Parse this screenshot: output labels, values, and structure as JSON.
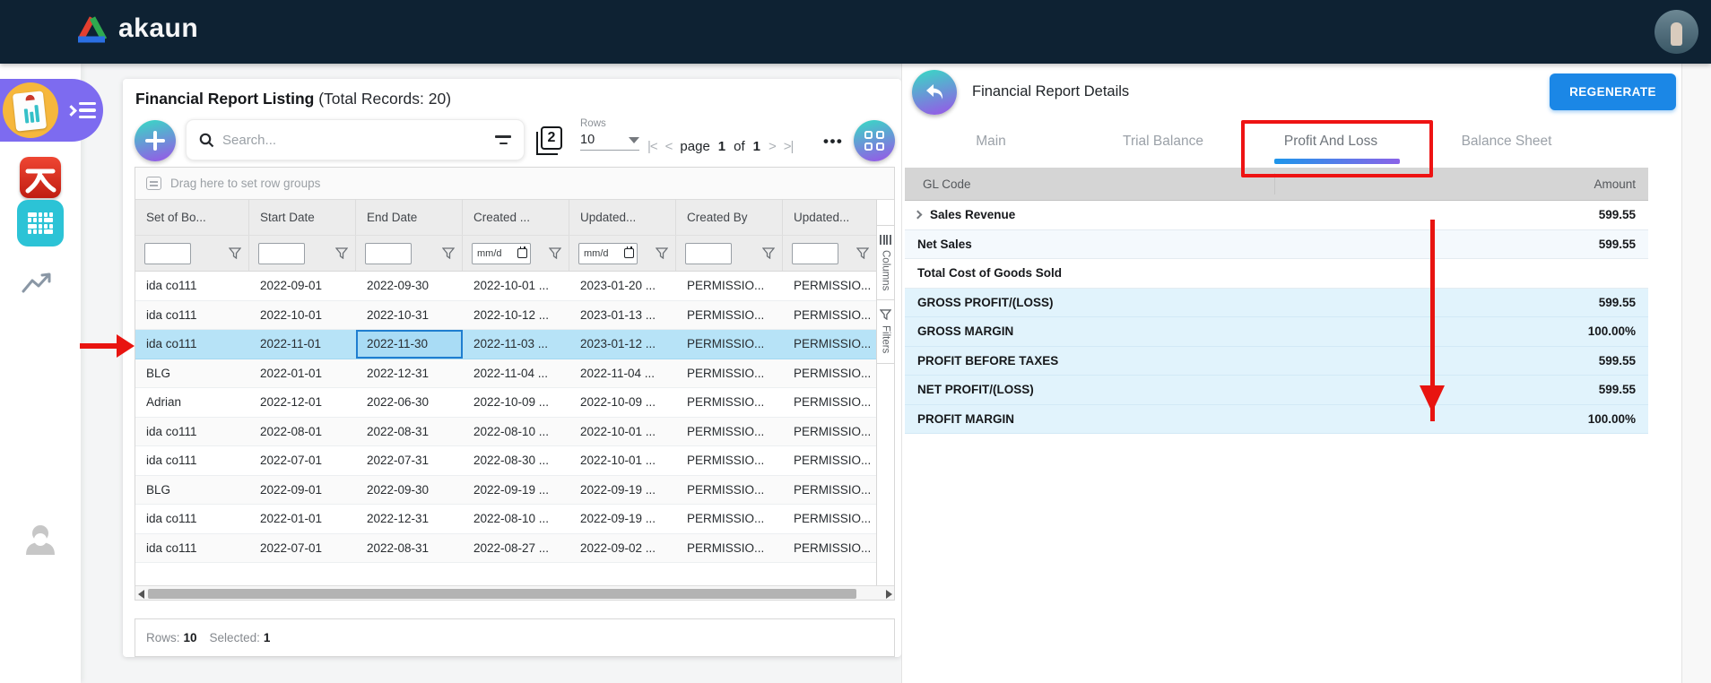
{
  "navbar": {
    "brand": "akaun"
  },
  "listing": {
    "title": "Financial Report Listing",
    "total_records_label": "(Total Records: 20)",
    "search_placeholder": "Search...",
    "rows_label": "Rows",
    "rows_value": "10",
    "pagination": {
      "page_label": "page",
      "current_page": "1",
      "of_label": "of",
      "total_pages": "1"
    },
    "drag_hint": "Drag here to set row groups",
    "columns": [
      "Set of Bo...",
      "Start Date",
      "End Date",
      "Created ...",
      "Updated...",
      "Created By",
      "Updated..."
    ],
    "filter_types": [
      "text",
      "date",
      "date",
      "date",
      "date",
      "text",
      "text"
    ],
    "date_filter_placeholder": "mm/d",
    "rows": [
      [
        "ida co111",
        "2022-09-01",
        "2022-09-30",
        "2022-10-01 ...",
        "2023-01-20 ...",
        "PERMISSIO...",
        "PERMISSIO..."
      ],
      [
        "ida co111",
        "2022-10-01",
        "2022-10-31",
        "2022-10-12 ...",
        "2023-01-13 ...",
        "PERMISSIO...",
        "PERMISSIO..."
      ],
      [
        "ida co111",
        "2022-11-01",
        "2022-11-30",
        "2022-11-03 ...",
        "2023-01-12 ...",
        "PERMISSIO...",
        "PERMISSIO..."
      ],
      [
        "BLG",
        "2022-01-01",
        "2022-12-31",
        "2022-11-04 ...",
        "2022-11-04 ...",
        "PERMISSIO...",
        "PERMISSIO..."
      ],
      [
        "Adrian",
        "2022-12-01",
        "2022-06-30",
        "2022-10-09 ...",
        "2022-10-09 ...",
        "PERMISSIO...",
        "PERMISSIO..."
      ],
      [
        "ida co111",
        "2022-08-01",
        "2022-08-31",
        "2022-08-10 ...",
        "2022-10-01 ...",
        "PERMISSIO...",
        "PERMISSIO..."
      ],
      [
        "ida co111",
        "2022-07-01",
        "2022-07-31",
        "2022-08-30 ...",
        "2022-10-01 ...",
        "PERMISSIO...",
        "PERMISSIO..."
      ],
      [
        "BLG",
        "2022-09-01",
        "2022-09-30",
        "2022-09-19 ...",
        "2022-09-19 ...",
        "PERMISSIO...",
        "PERMISSIO..."
      ],
      [
        "ida co111",
        "2022-01-01",
        "2022-12-31",
        "2022-08-10 ...",
        "2022-09-19 ...",
        "PERMISSIO...",
        "PERMISSIO..."
      ],
      [
        "ida co111",
        "2022-07-01",
        "2022-08-31",
        "2022-08-27 ...",
        "2022-09-02 ...",
        "PERMISSIO...",
        "PERMISSIO..."
      ]
    ],
    "selected_row_index": 2,
    "focused_cell": {
      "row": 2,
      "column_index": 2
    },
    "side_tabs": [
      "Columns",
      "Filters"
    ],
    "status": {
      "rows_label": "Rows:",
      "rows_value": "10",
      "selected_label": "Selected:",
      "selected_value": "1"
    }
  },
  "details": {
    "title": "Financial Report Details",
    "regenerate_label": "REGENERATE",
    "tabs": [
      "Main",
      "Trial Balance",
      "Profit And Loss",
      "Balance Sheet"
    ],
    "active_tab_index": 2,
    "table": {
      "columns": [
        "GL Code",
        "Amount"
      ],
      "rows": [
        {
          "label": "Sales Revenue",
          "amount": "599.55",
          "expandable": true,
          "style": "plain"
        },
        {
          "label": "Net Sales",
          "amount": "599.55",
          "expandable": false,
          "style": "stripe"
        },
        {
          "label": "Total Cost of Goods Sold",
          "amount": "",
          "expandable": false,
          "style": "plain"
        },
        {
          "label": "GROSS PROFIT/(LOSS)",
          "amount": "599.55",
          "expandable": false,
          "style": "highlight"
        },
        {
          "label": "GROSS MARGIN",
          "amount": "100.00%",
          "expandable": false,
          "style": "highlight"
        },
        {
          "label": "PROFIT BEFORE TAXES",
          "amount": "599.55",
          "expandable": false,
          "style": "highlight"
        },
        {
          "label": "NET PROFIT/(LOSS)",
          "amount": "599.55",
          "expandable": false,
          "style": "highlight"
        },
        {
          "label": "PROFIT MARGIN",
          "amount": "100.00%",
          "expandable": false,
          "style": "highlight"
        }
      ]
    }
  },
  "colors": {
    "navbar_bg": "#0e2233",
    "accent_gradient_start": "#36dcc4",
    "accent_gradient_end": "#9a53e8",
    "primary_button": "#1b87e6",
    "selected_row": "#b7e3f7",
    "highlight_row": "#e1f3fc",
    "annotation_red": "#ee1313",
    "sidebar_active_pill": "#7d6bf0"
  }
}
